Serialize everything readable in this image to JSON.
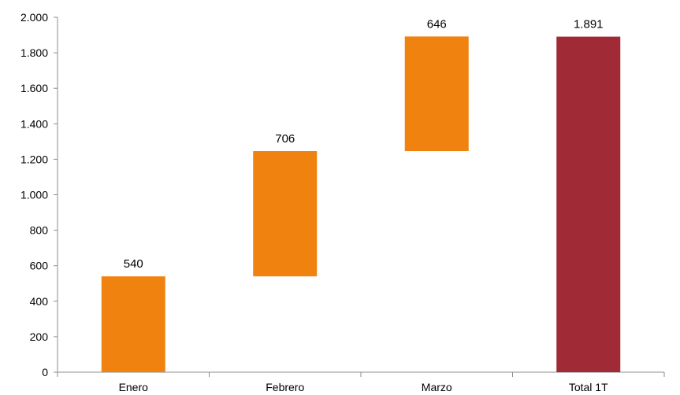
{
  "chart_data": {
    "type": "bar",
    "subtype": "waterfall",
    "categories": [
      "Enero",
      "Febrero",
      "Marzo",
      "Total 1T"
    ],
    "values": [
      540,
      706,
      646,
      1891
    ],
    "data_labels": [
      "540",
      "706",
      "646",
      "1.891"
    ],
    "bar_kinds": [
      "increment",
      "increment",
      "increment",
      "total"
    ],
    "ylim": [
      0,
      2000
    ],
    "yticks": [
      0,
      200,
      400,
      600,
      800,
      1000,
      1200,
      1400,
      1600,
      1800,
      2000
    ],
    "ytick_labels": [
      "0",
      "200",
      "400",
      "600",
      "800",
      "1.000",
      "1.200",
      "1.400",
      "1.600",
      "1.800",
      "2.000"
    ],
    "grid": false,
    "legend": "none",
    "colors": {
      "increment": "#f08210",
      "total": "#a12a37"
    }
  }
}
